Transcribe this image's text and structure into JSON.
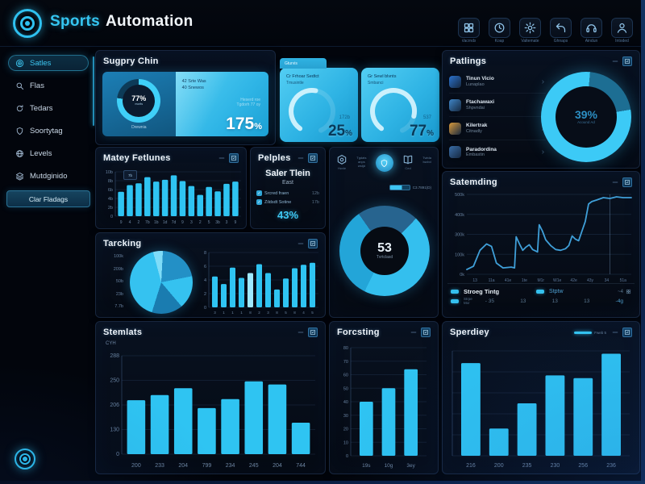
{
  "header": {
    "brand_primary": "Sports",
    "brand_secondary": "Automation",
    "toolbar": [
      {
        "icon": "grid",
        "label": "Vacrnds"
      },
      {
        "icon": "clock",
        "label": "Koap"
      },
      {
        "icon": "gear",
        "label": "Valtemate"
      },
      {
        "icon": "reply",
        "label": "Ghnaps"
      },
      {
        "icon": "headset",
        "label": "Aindun"
      },
      {
        "icon": "user",
        "label": "Intoded"
      }
    ]
  },
  "sidebar": {
    "items": [
      {
        "icon": "target",
        "label": "Satles",
        "active": true
      },
      {
        "icon": "search",
        "label": "Flas",
        "active": false
      },
      {
        "icon": "refresh",
        "label": "Tedars",
        "active": false
      },
      {
        "icon": "shield",
        "label": "Soortytag",
        "active": false
      },
      {
        "icon": "globe",
        "label": "Levels",
        "active": false
      },
      {
        "icon": "layers",
        "label": "Mutdginido",
        "active": false
      }
    ],
    "footer_button": "Clar Fladags"
  },
  "panels": {
    "supply": {
      "title": "Sugpry Chin",
      "donut": {
        "value": "77%",
        "sub": "morits",
        "caption": "Drewnia",
        "start": 0,
        "segments": [
          {
            "color": "#3fd0f8",
            "pct": 77
          },
          {
            "color": "#0d3b58",
            "pct": 23
          }
        ]
      },
      "card": {
        "line1": "42 Srte Was",
        "line2": "40 Snewos",
        "faint1": "Heserd roe",
        "faint2": "Tgdorh 77 oy",
        "value": "175",
        "unit": "%"
      }
    },
    "gauge_cards": {
      "tab": "Gturvis",
      "cards": [
        {
          "line1": "Cr Frhoar Sedtct",
          "line2": "Tmusintle",
          "sub": "172b",
          "value": "25",
          "unit": "%",
          "pct": 25
        },
        {
          "line1": "Gr Sewl blvnts",
          "line2": "Smbanci",
          "sub": "537",
          "value": "77",
          "unit": "%",
          "pct": 77
        }
      ]
    },
    "ratings": {
      "title": "Patlings",
      "items": [
        {
          "title": "Tinun Vicio",
          "sub": "Lunaplao",
          "color": "#2b72cc"
        },
        {
          "title": "Ftachawaxi",
          "sub": "Shpvndai",
          "color": "#3f86c8"
        },
        {
          "title": "Kilertrak",
          "sub": "Citnadly",
          "color": "#d99a3c"
        },
        {
          "title": "Paradordina",
          "sub": "Embastin",
          "color": "#3a6ea8"
        }
      ],
      "donut": {
        "value": "39%",
        "sub": "Acound Ad",
        "start": 5,
        "segments": [
          {
            "color": "#1d6e93",
            "pct": 21
          },
          {
            "color": "#3ccaf6",
            "pct": 79
          }
        ]
      }
    },
    "matey": {
      "title": "Matey Fetlunes",
      "tooltip": "7b",
      "chart_data": {
        "type": "bar",
        "max": 10,
        "values": [
          5.5,
          7,
          7.4,
          8.8,
          7.8,
          8.2,
          9.2,
          7.9,
          6.8,
          4.8,
          6.6,
          5.6,
          7.3,
          7.8
        ],
        "y_ticks": [
          "10b",
          "8b",
          "6b",
          "4b",
          "2b",
          "0"
        ],
        "x_labels": [
          "9",
          "4",
          "2",
          "7b",
          "1b",
          "1d",
          "7d",
          "9",
          "3",
          "2",
          "5",
          "3b",
          "3",
          "9"
        ]
      }
    },
    "pelples": {
      "title": "Pelples",
      "heading": "Saler Tlein",
      "subheading": "East",
      "rows": [
        {
          "label": "Srcred fraen",
          "value": "12b"
        },
        {
          "label": "Zildsdt Sotine",
          "value": "17b"
        }
      ],
      "big_value": "43%"
    },
    "center": {
      "toolbar": {
        "icon1_label": "Hwde",
        "text1": [
          "Tgdats",
          "anps",
          "wstjd"
        ],
        "icon2_label": "Ced",
        "text2": [
          "Twtda",
          "lwcbd"
        ]
      },
      "badge": "C3.7891(D)",
      "donut": {
        "value": "53",
        "sub": "Tvrtclasd",
        "start": -35,
        "segments": [
          {
            "color": "#27648f",
            "pct": 22
          },
          {
            "color": "#34bfee",
            "pct": 45
          },
          {
            "color": "#23a5d8",
            "pct": 33
          }
        ]
      }
    },
    "satemding": {
      "title": "Satemding",
      "chart_data": {
        "type": "line",
        "points": [
          [
            0,
            6
          ],
          [
            4,
            10
          ],
          [
            8,
            30
          ],
          [
            12,
            38
          ],
          [
            15,
            35
          ],
          [
            18,
            14
          ],
          [
            22,
            8
          ],
          [
            27,
            9
          ],
          [
            29,
            8
          ],
          [
            30,
            47
          ],
          [
            32,
            38
          ],
          [
            34,
            30
          ],
          [
            36,
            34
          ],
          [
            38,
            37
          ],
          [
            40,
            31
          ],
          [
            43,
            28
          ],
          [
            44,
            62
          ],
          [
            46,
            54
          ],
          [
            48,
            43
          ],
          [
            51,
            36
          ],
          [
            54,
            31
          ],
          [
            57,
            30
          ],
          [
            60,
            32
          ],
          [
            62,
            36
          ],
          [
            64,
            48
          ],
          [
            66,
            44
          ],
          [
            68,
            42
          ],
          [
            70,
            54
          ],
          [
            72,
            66
          ],
          [
            74,
            88
          ],
          [
            76,
            91
          ],
          [
            79,
            93
          ],
          [
            83,
            96
          ],
          [
            87,
            95
          ],
          [
            91,
            97
          ],
          [
            95,
            96
          ],
          [
            100,
            96
          ]
        ],
        "y_ticks": [
          "500k",
          "400k",
          "300k",
          "100k",
          "0k"
        ],
        "x_labels": [
          "13",
          "11a",
          "41e",
          "1te",
          "M1r",
          "W1e",
          "42e",
          "43y",
          "34",
          "51a"
        ],
        "crosshair_pct": 87
      },
      "legend": {
        "s1": "Stroeg Tintg",
        "s2": "Stptw",
        "extra": "~4",
        "r2_label_1": "Strpe",
        "r2_label_2": "Mxr",
        "values": [
          "- 35",
          "13",
          "13",
          "13",
          "-4g"
        ]
      }
    },
    "tarcking": {
      "title": "Tarcking",
      "left_labels": [
        "100k",
        "209b",
        "50b",
        "23b",
        "7.7b"
      ],
      "pie": {
        "start": -15,
        "slices": [
          {
            "color": "#7fdcf8",
            "pct": 5
          },
          {
            "color": "#2390c6",
            "pct": 21
          },
          {
            "color": "#35c2f0",
            "pct": 17
          },
          {
            "color": "#1a7cb0",
            "pct": 16
          },
          {
            "color": "#35c2f0",
            "pct": 41
          }
        ]
      },
      "chart_data": {
        "type": "bar",
        "max": 8,
        "highlight_index": 4,
        "values": [
          4.5,
          3.4,
          5.8,
          4.3,
          5,
          6.3,
          5,
          2.6,
          4.2,
          5.7,
          6.2,
          6.5
        ],
        "y_ticks": [
          "8",
          "6",
          "4",
          "2",
          "0"
        ],
        "x_labels": [
          "3",
          "1",
          "1",
          "1",
          "8",
          "2",
          "3",
          "8",
          "5",
          "8",
          "4",
          "5"
        ]
      }
    },
    "stemlats": {
      "title": "Stemlats",
      "unit": "CYH",
      "chart_data": {
        "type": "bar",
        "max": 288,
        "values": [
          158,
          173,
          193,
          135,
          161,
          213,
          204,
          92
        ],
        "y_ticks": [
          "288",
          "250",
          "206",
          "130",
          "0"
        ],
        "x_labels": [
          "200",
          "233",
          "204",
          "799",
          "234",
          "245",
          "204",
          "744"
        ]
      }
    },
    "forcsting": {
      "title": "Forcsting",
      "chart_data": {
        "type": "bar",
        "max": 80,
        "values": [
          40,
          50,
          64
        ],
        "y_ticks": [
          "80",
          "70",
          "60",
          "50",
          "40",
          "30",
          "20",
          "10",
          "0"
        ],
        "x_labels": [
          "19s",
          "10g",
          "3ey"
        ]
      }
    },
    "sperdiey": {
      "title": "Sperdiey",
      "legend": "Fweb 5",
      "chart_data": {
        "type": "bar",
        "max": 300,
        "grid_count": 6,
        "values": [
          265,
          78,
          150,
          230,
          222,
          292
        ],
        "y_ticks": [],
        "x_labels": [
          "216",
          "200",
          "235",
          "230",
          "256",
          "236"
        ]
      }
    }
  },
  "colors": {
    "accent": "#2fc4f2",
    "accent_bright": "#8fe3ff",
    "card_cyan": "#2fb5e6",
    "card_blue": "#1c7fb6",
    "panel_border": "#17263e"
  }
}
